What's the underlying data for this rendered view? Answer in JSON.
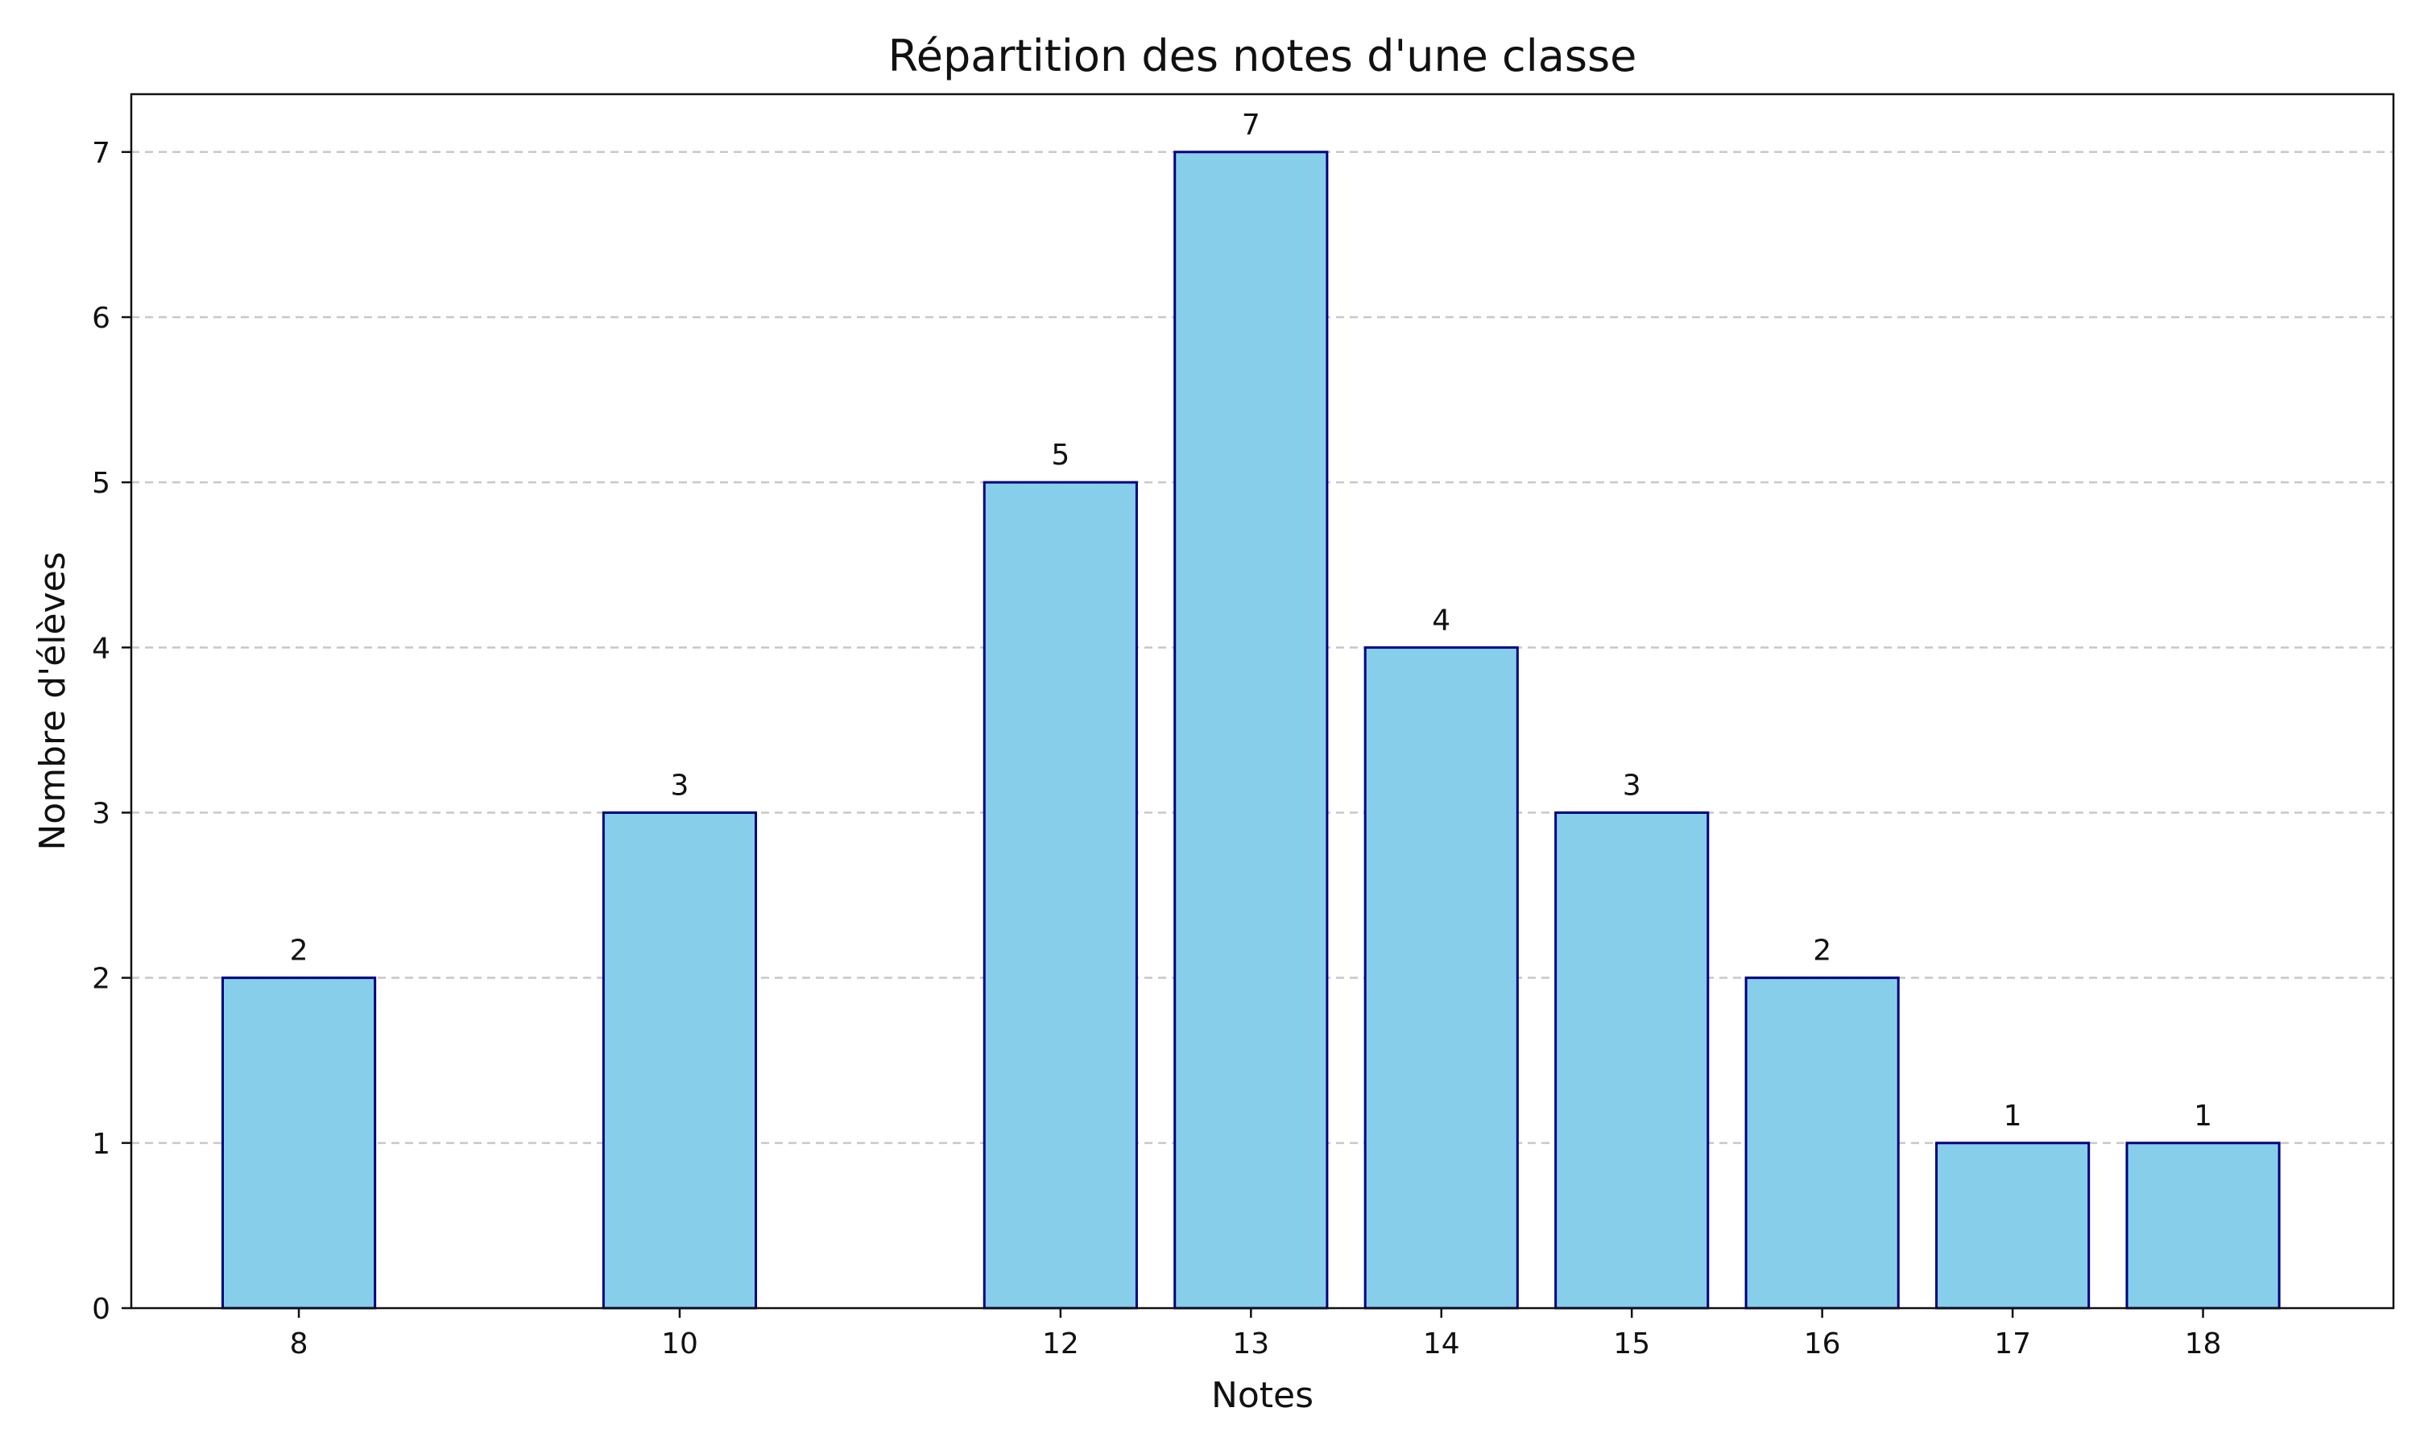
{
  "chart_data": {
    "type": "bar",
    "title": "Répartition des notes d'une classe",
    "xlabel": "Notes",
    "ylabel": "Nombre d'élèves",
    "categories": [
      "8",
      "10",
      "12",
      "13",
      "14",
      "15",
      "16",
      "17",
      "18"
    ],
    "x": [
      8,
      10,
      12,
      13,
      14,
      15,
      16,
      17,
      18
    ],
    "values": [
      2,
      3,
      5,
      7,
      4,
      3,
      2,
      1,
      1
    ],
    "data_labels": [
      "2",
      "3",
      "5",
      "7",
      "4",
      "3",
      "2",
      "1",
      "1"
    ],
    "xlim": [
      7.12,
      19.0
    ],
    "ylim": [
      0,
      7.35
    ],
    "yticks": [
      0,
      1,
      2,
      3,
      4,
      5,
      6,
      7
    ],
    "ytick_labels": [
      "0",
      "1",
      "2",
      "3",
      "4",
      "5",
      "6",
      "7"
    ],
    "grid": "horizontal-dashed",
    "legend": "none",
    "colors": {
      "bar_fill": "#87CEEB",
      "bar_edge": "#000080",
      "grid": "#c8c8c8",
      "axis": "#111111"
    }
  }
}
